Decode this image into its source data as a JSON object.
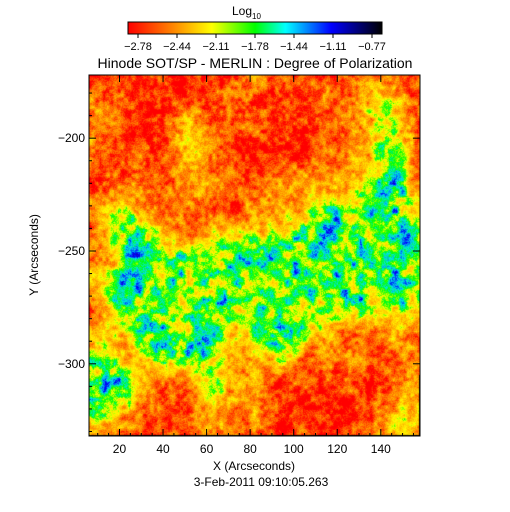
{
  "chart_data": {
    "type": "heatmap",
    "title": "Hinode SOT/SP - MERLIN : Degree of Polarization",
    "xlabel": "X (Arcseconds)",
    "ylabel": "Y (Arcseconds)",
    "timestamp": "3-Feb-2011 09:10:05.263",
    "colorbar": {
      "label_main": "Log",
      "label_sub": "10",
      "ticks": [
        "−2.78",
        "−2.44",
        "−2.11",
        "−1.78",
        "−1.44",
        "−1.11",
        "−0.77"
      ],
      "range": [
        -2.78,
        -0.77
      ],
      "colormap": [
        "#ff0000",
        "#ff8000",
        "#ffff00",
        "#00ff00",
        "#00ffff",
        "#0000ff",
        "#000000"
      ]
    },
    "xlim": [
      6,
      158
    ],
    "ylim": [
      -332,
      -172
    ],
    "xticks": [
      20,
      40,
      60,
      80,
      100,
      120,
      140
    ],
    "yticks": [
      -200,
      -250,
      -300
    ],
    "xtick_labels": [
      "20",
      "40",
      "60",
      "80",
      "100",
      "120",
      "140"
    ],
    "ytick_labels": [
      "−200",
      "−250",
      "−300"
    ]
  }
}
